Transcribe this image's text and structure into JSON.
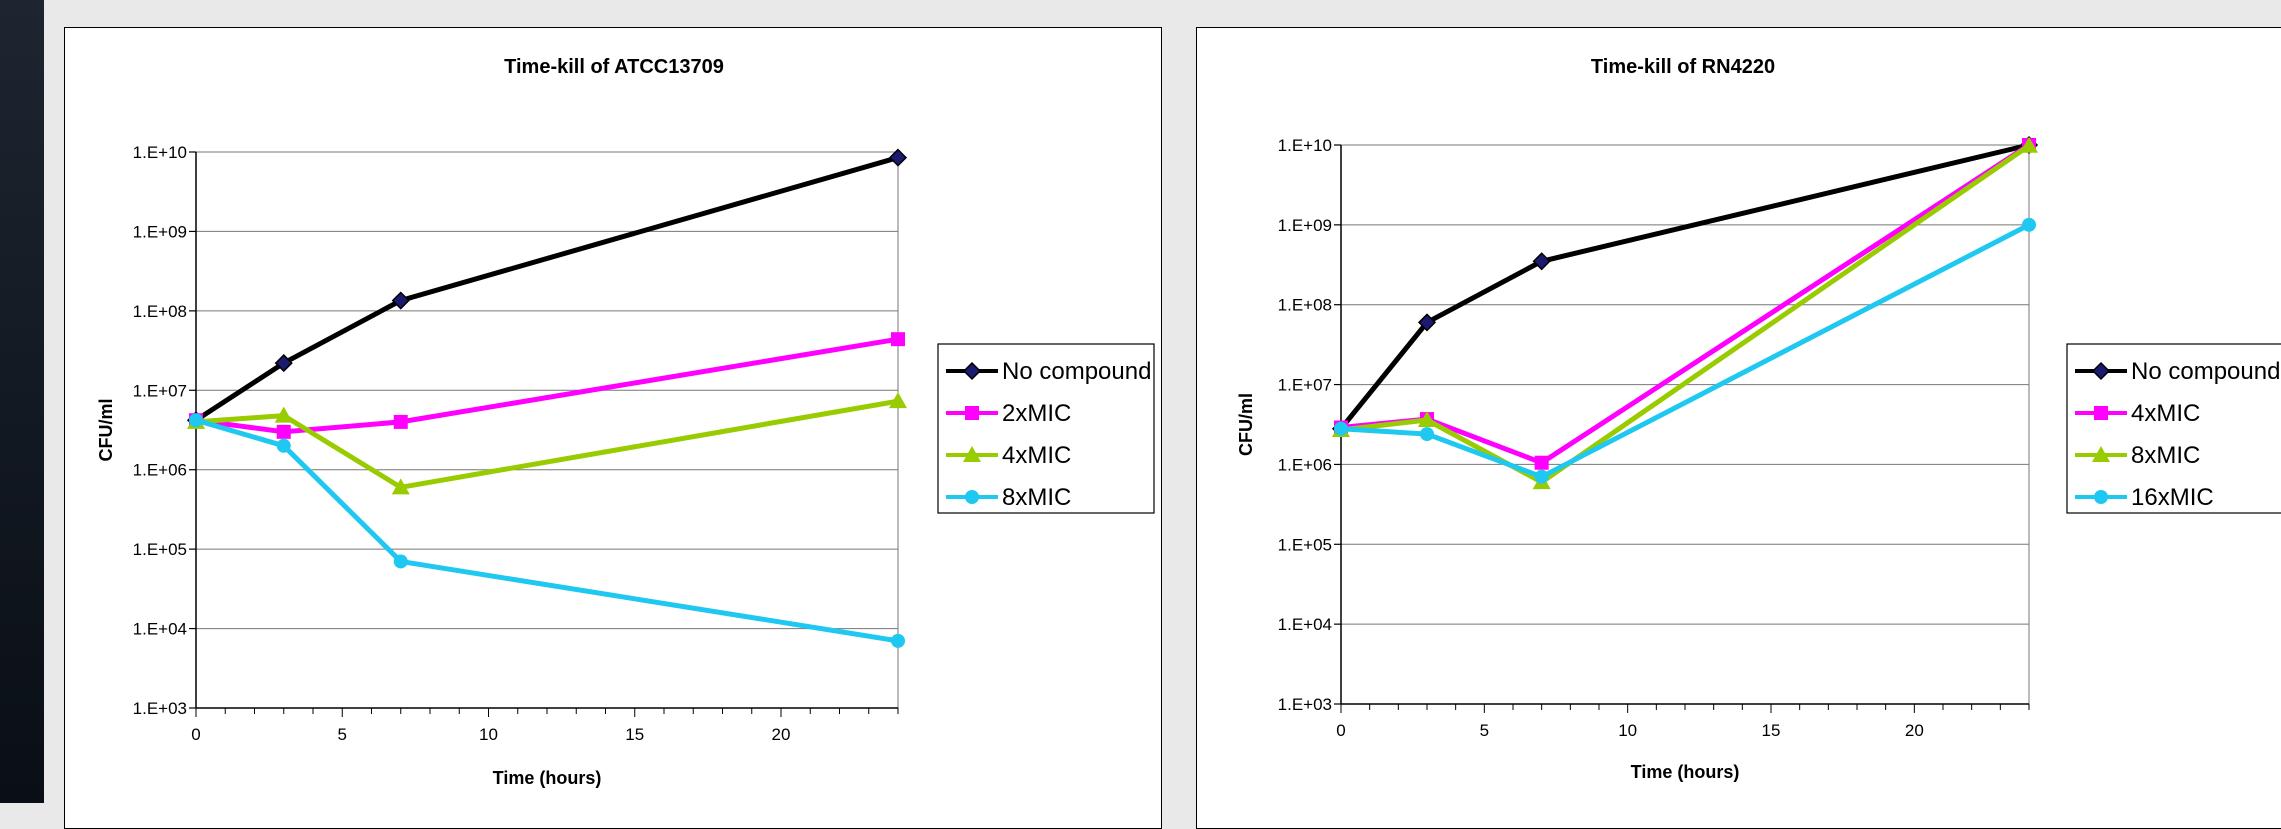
{
  "colors": {
    "no_compound": "#000000",
    "marker_no_compound": "#1a1a6e",
    "magenta": "#ff00ff",
    "green": "#99cc00",
    "cyan": "#1ec8f0"
  },
  "chart_data": [
    {
      "type": "line",
      "title": "Time-kill of ATCC13709",
      "xlabel": "Time (hours)",
      "ylabel": "CFU/ml",
      "yscale": "log",
      "xlim": [
        0,
        24
      ],
      "ylim": [
        1000,
        10000000000
      ],
      "xticks": [
        0,
        5,
        10,
        15,
        20
      ],
      "yticks": [
        "1.E+03",
        "1.E+04",
        "1.E+05",
        "1.E+06",
        "1.E+07",
        "1.E+08",
        "1.E+09",
        "1.E+10"
      ],
      "grid": "horizontal",
      "legend_position": "right",
      "x": [
        0,
        3,
        7,
        24
      ],
      "series": [
        {
          "name": "No compound",
          "marker": "diamond",
          "color": "#000000",
          "values": [
            4200000,
            22000000,
            135000000,
            8500000000
          ]
        },
        {
          "name": "2xMIC",
          "marker": "square",
          "color": "#ff00ff",
          "values": [
            4200000,
            3000000,
            4000000,
            44000000
          ]
        },
        {
          "name": "4xMIC",
          "marker": "triangle",
          "color": "#99cc00",
          "values": [
            4000000,
            4800000,
            600000,
            7300000
          ]
        },
        {
          "name": "8xMIC",
          "marker": "circle",
          "color": "#1ec8f0",
          "values": [
            4200000,
            2000000,
            70000,
            7000
          ]
        }
      ]
    },
    {
      "type": "line",
      "title": "Time-kill of RN4220",
      "xlabel": "Time (hours)",
      "ylabel": "CFU/ml",
      "yscale": "log",
      "xlim": [
        0,
        24
      ],
      "ylim": [
        1000,
        10000000000
      ],
      "xticks": [
        0,
        5,
        10,
        15,
        20
      ],
      "yticks": [
        "1.E+03",
        "1.E+04",
        "1.E+05",
        "1.E+06",
        "1.E+07",
        "1.E+08",
        "1.E+09",
        "1.E+10"
      ],
      "grid": "horizontal",
      "legend_position": "right",
      "x": [
        0,
        3,
        7,
        24
      ],
      "series": [
        {
          "name": "No compound",
          "marker": "diamond",
          "color": "#000000",
          "values": [
            2800000,
            60000000,
            350000000,
            10000000000
          ]
        },
        {
          "name": "4xMIC",
          "marker": "square",
          "color": "#ff00ff",
          "values": [
            2900000,
            3700000,
            1050000,
            10000000000
          ]
        },
        {
          "name": "8xMIC",
          "marker": "triangle",
          "color": "#99cc00",
          "values": [
            2700000,
            3600000,
            600000,
            9800000000
          ]
        },
        {
          "name": "16xMIC",
          "marker": "circle",
          "color": "#1ec8f0",
          "values": [
            2800000,
            2400000,
            700000,
            1000000000
          ]
        }
      ]
    }
  ]
}
